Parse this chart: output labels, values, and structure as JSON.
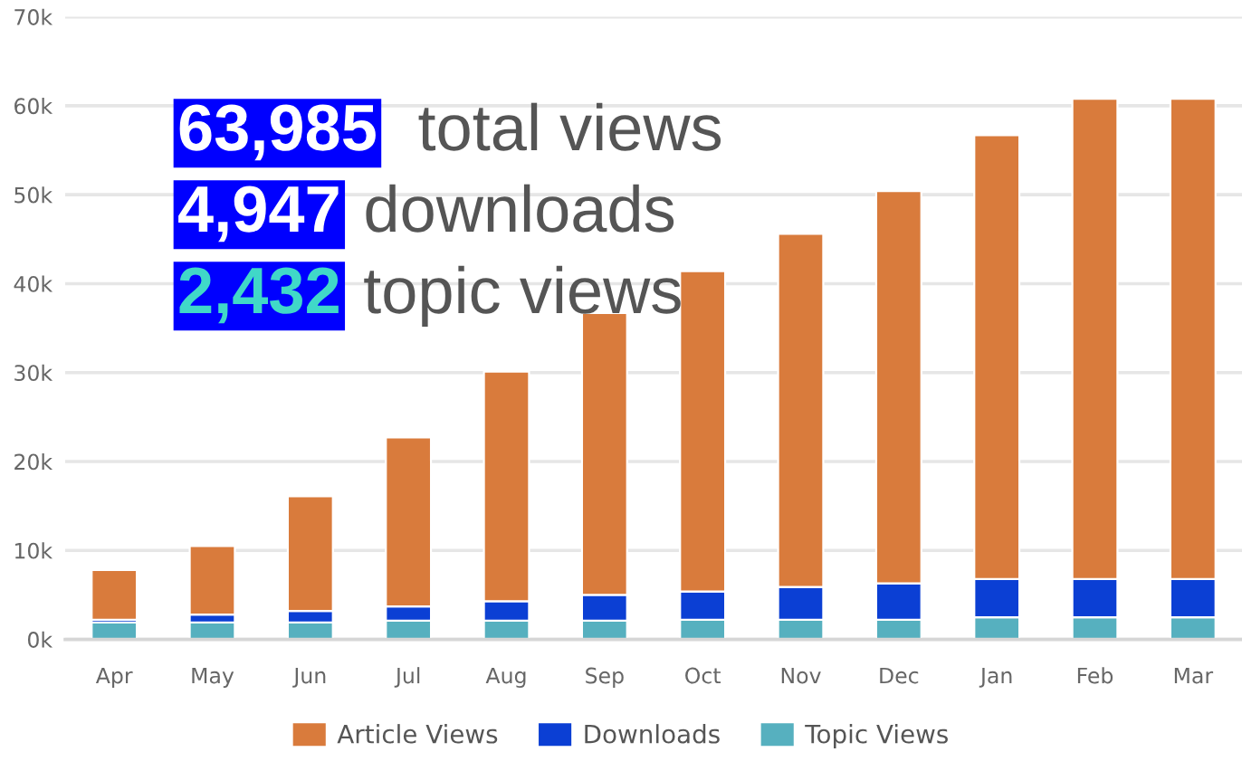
{
  "chart_data": {
    "type": "bar",
    "stacked": true,
    "categories": [
      "Apr",
      "May",
      "Jun",
      "Jul",
      "Aug",
      "Sep",
      "Oct",
      "Nov",
      "Dec",
      "Jan",
      "Feb",
      "Mar"
    ],
    "series": [
      {
        "name": "Topic Views",
        "color": "#56b0bf",
        "values": [
          1900,
          1900,
          1900,
          2100,
          2100,
          2100,
          2200,
          2200,
          2200,
          2500,
          2500,
          2500
        ]
      },
      {
        "name": "Downloads",
        "color": "#0b3fd4",
        "values": [
          300,
          900,
          1300,
          1600,
          2200,
          2900,
          3200,
          3700,
          4100,
          4300,
          4300,
          4300
        ]
      },
      {
        "name": "Article Views",
        "color": "#d97b3c",
        "values": [
          5600,
          7700,
          12900,
          19000,
          25800,
          31700,
          36000,
          39700,
          44100,
          49900,
          54000,
          54000
        ]
      }
    ],
    "ylim": [
      0,
      70000
    ],
    "yticks": [
      {
        "value": 0,
        "label": "0k"
      },
      {
        "value": 10000,
        "label": "10k"
      },
      {
        "value": 20000,
        "label": "20k"
      },
      {
        "value": 30000,
        "label": "30k"
      },
      {
        "value": 40000,
        "label": "40k"
      },
      {
        "value": 50000,
        "label": "50k"
      },
      {
        "value": 60000,
        "label": "60k"
      },
      {
        "value": 70000,
        "label": "70k"
      }
    ],
    "grid": "y",
    "legend": "bottom",
    "annotations": [
      "63,985  total views",
      "4,947 downloads",
      "2,432 topic views"
    ]
  }
}
